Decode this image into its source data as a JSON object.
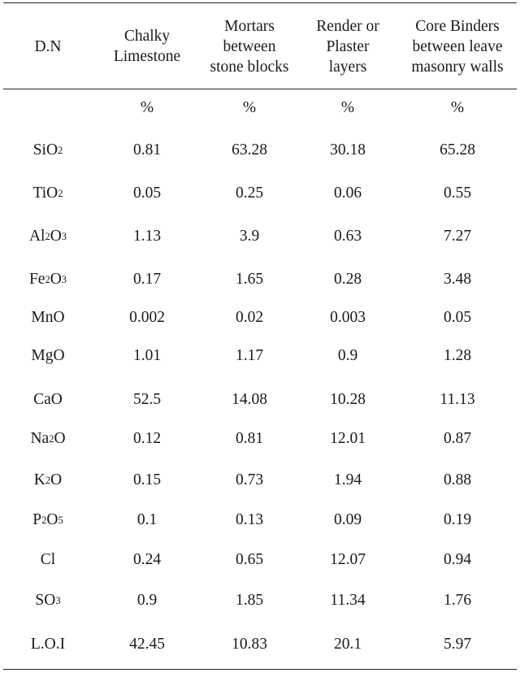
{
  "table": {
    "headers": [
      "D.N",
      "Chalky\nLimestone",
      "Mortars\nbetween\nstone blocks",
      "Render or\nPlaster\nlayers",
      "Core Binders\nbetween leave\nmasonry walls"
    ],
    "units": [
      "",
      "%",
      "%",
      "%",
      "%"
    ],
    "rows": [
      {
        "label": "SiO",
        "sub": "2",
        "suffix": "",
        "values": [
          "0.81",
          "63.28",
          "30.18",
          "65.28"
        ]
      },
      {
        "label": "TiO",
        "sub": "2",
        "suffix": "",
        "values": [
          "0.05",
          "0.25",
          "0.06",
          "0.55"
        ]
      },
      {
        "label": "Al",
        "sub": "2",
        "suffix": "O",
        "sub2": "3",
        "values": [
          "1.13",
          "3.9",
          "0.63",
          "7.27"
        ]
      },
      {
        "label": "Fe",
        "sub": "2",
        "suffix": "O",
        "sub2": "3",
        "values": [
          "0.17",
          "1.65",
          "0.28",
          "3.48"
        ]
      },
      {
        "label": "MnO",
        "sub": "",
        "suffix": "",
        "values": [
          "0.002",
          "0.02",
          "0.003",
          "0.05"
        ]
      },
      {
        "label": "MgO",
        "sub": "",
        "suffix": "",
        "values": [
          "1.01",
          "1.17",
          "0.9",
          "1.28"
        ]
      },
      {
        "label": "CaO",
        "sub": "",
        "suffix": "",
        "values": [
          "52.5",
          "14.08",
          "10.28",
          "11.13"
        ]
      },
      {
        "label": "Na",
        "sub": "2",
        "suffix": "O",
        "values": [
          "0.12",
          "0.81",
          "12.01",
          "0.87"
        ]
      },
      {
        "label": "K",
        "sub": "2",
        "suffix": "O",
        "values": [
          "0.15",
          "0.73",
          "1.94",
          "0.88"
        ]
      },
      {
        "label": "P",
        "sub": "2",
        "suffix": "O",
        "sub2": "5",
        "values": [
          "0.1",
          "0.13",
          "0.09",
          "0.19"
        ]
      },
      {
        "label": "Cl",
        "sub": "",
        "suffix": "",
        "values": [
          "0.24",
          "0.65",
          "12.07",
          "0.94"
        ]
      },
      {
        "label": "SO",
        "sub": "3",
        "suffix": "",
        "values": [
          "0.9",
          "1.85",
          "11.34",
          "1.76"
        ]
      },
      {
        "label": "L.O.I",
        "sub": "",
        "suffix": "",
        "values": [
          "42.45",
          "10.83",
          "20.1",
          "5.97"
        ]
      }
    ]
  }
}
